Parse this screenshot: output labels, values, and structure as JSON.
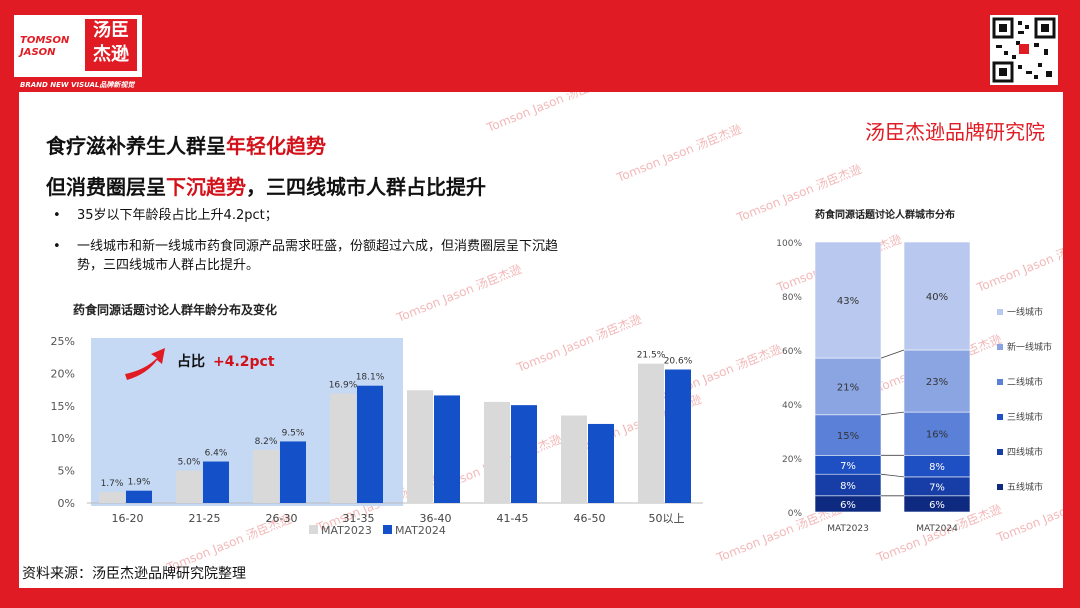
{
  "brand": {
    "logo_en": "TOMSON JASON",
    "logo_cn": "汤臣杰逊",
    "tagline": "BRAND NEW VISUAL品牌新视觉",
    "institute": "汤臣杰逊品牌研究院",
    "watermark": "Tomson Jason 汤臣杰逊"
  },
  "colors": {
    "brand_red": "#e01b23",
    "mat2023": "#d9d9d9",
    "mat2024": "#1450c8",
    "highlight_bg": "#c5d9f4"
  },
  "title": {
    "line1_prefix": "食疗滋补养生人群呈",
    "line1_highlight": "年轻化趋势",
    "line2_prefix": "但消费圈层呈",
    "line2_highlight": "下沉趋势",
    "line2_suffix": "，三四线城市人群占比提升"
  },
  "bullets": [
    "35岁以下年龄段占比上升4.2pct；",
    "一线城市和新一线城市药食同源产品需求旺盛，份额超过六成，但消费圈层呈下沉趋势，三四线城市人群占比提升。"
  ],
  "source": "资料来源：汤臣杰逊品牌研究院整理",
  "chart_data": [
    {
      "type": "bar",
      "title": "药食同源话题讨论人群年龄分布及变化",
      "categories": [
        "16-20",
        "21-25",
        "26-30",
        "31-35",
        "36-40",
        "41-45",
        "46-50",
        "50以上"
      ],
      "series": [
        {
          "name": "MAT2023",
          "values": [
            1.7,
            5.0,
            8.2,
            16.9,
            17.4,
            15.6,
            13.5,
            21.5
          ]
        },
        {
          "name": "MAT2024",
          "values": [
            1.9,
            6.4,
            9.5,
            18.1,
            16.6,
            15.1,
            12.2,
            20.6
          ]
        }
      ],
      "data_labels": [
        [
          "1.7%",
          "5.0%",
          "8.2%",
          "16.9%",
          null,
          null,
          null,
          "21.5%"
        ],
        [
          "1.9%",
          "6.4%",
          "9.5%",
          "18.1%",
          null,
          null,
          null,
          "20.6%"
        ]
      ],
      "y_ticks": [
        "0%",
        "5%",
        "10%",
        "15%",
        "20%",
        "25%"
      ],
      "ylim": [
        0,
        25
      ],
      "annotation": {
        "label": "占比",
        "value": "+4.2pct"
      },
      "legend_placement": "bottom"
    },
    {
      "type": "bar",
      "stacked": true,
      "title": "药食同源话题讨论人群城市分布",
      "categories": [
        "MAT2023",
        "MAT2024"
      ],
      "series": [
        {
          "name": "五线城市",
          "values": [
            6,
            6
          ],
          "color": "#0d2a80"
        },
        {
          "name": "四线城市",
          "values": [
            8,
            7
          ],
          "color": "#173da6"
        },
        {
          "name": "三线城市",
          "values": [
            7,
            8
          ],
          "color": "#1e50c4"
        },
        {
          "name": "二线城市",
          "values": [
            15,
            16
          ],
          "color": "#5a80d8"
        },
        {
          "name": "新一线城市",
          "values": [
            21,
            23
          ],
          "color": "#8aa5e2"
        },
        {
          "name": "一线城市",
          "values": [
            43,
            40
          ],
          "color": "#b9c8ee"
        }
      ],
      "y_ticks": [
        "0%",
        "20%",
        "40%",
        "60%",
        "80%",
        "100%"
      ],
      "ylim": [
        0,
        100
      ],
      "legend_placement": "right"
    }
  ]
}
